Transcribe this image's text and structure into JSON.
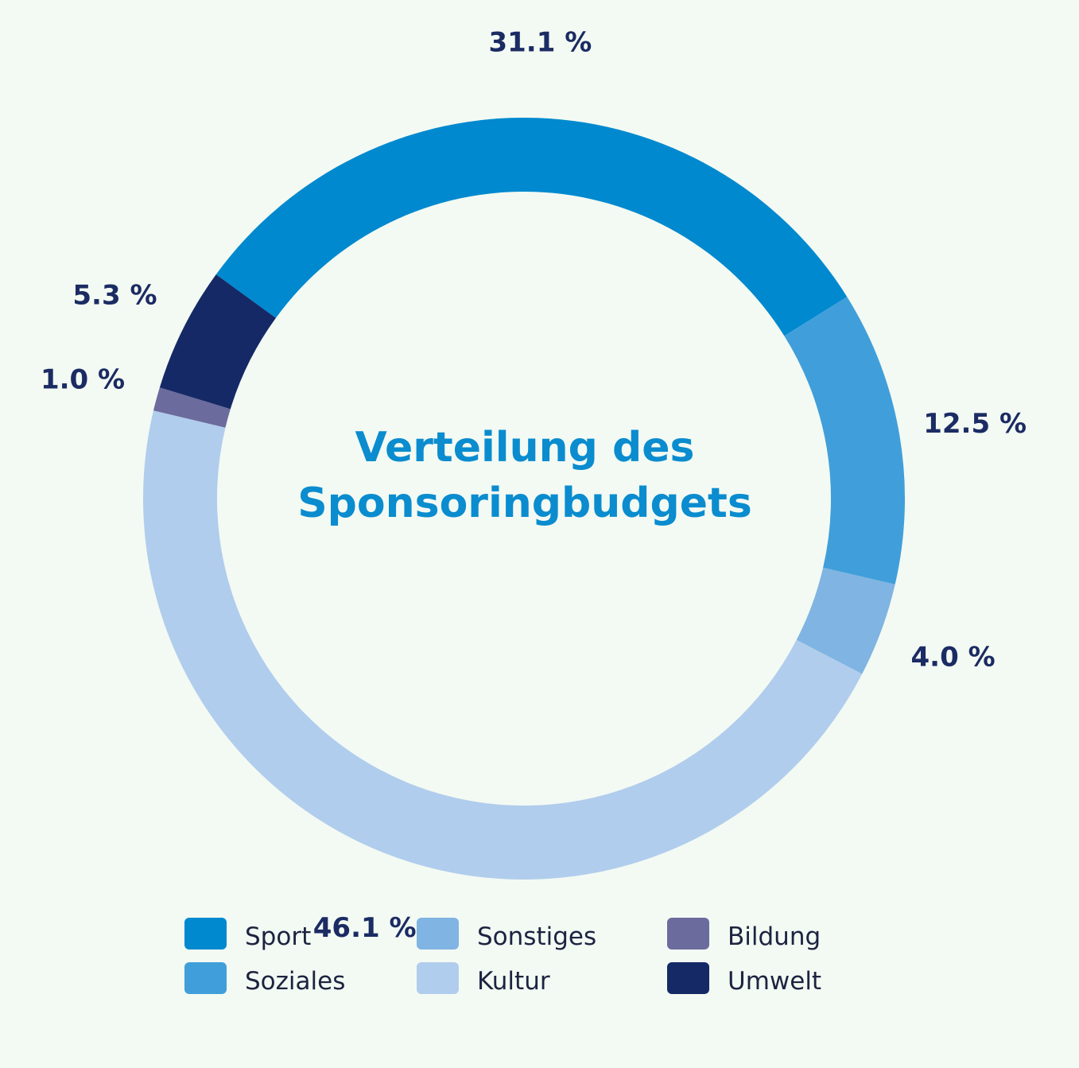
{
  "chart_data": {
    "type": "pie",
    "title": "Verteilung des Sponsoringbudgets",
    "title_lines": [
      "Verteilung des",
      "Sponsoringbudgets"
    ],
    "donut": true,
    "legend_position": "bottom",
    "slices": [
      {
        "name": "Sport",
        "value": 31.1,
        "label": "31.1 %",
        "color": "#0089cf"
      },
      {
        "name": "Soziales",
        "value": 12.5,
        "label": "12.5 %",
        "color": "#409fda"
      },
      {
        "name": "Sonstiges",
        "value": 4.0,
        "label": "4.0 %",
        "color": "#80b4e2"
      },
      {
        "name": "Kultur",
        "value": 46.1,
        "label": "46.1 %",
        "color": "#b1cded"
      },
      {
        "name": "Bildung",
        "value": 1.0,
        "label": "1.0 %",
        "color": "#6b6b9d"
      },
      {
        "name": "Umwelt",
        "value": 5.3,
        "label": "5.3 %",
        "color": "#152966"
      }
    ],
    "legend": [
      {
        "name": "Sport",
        "color": "#0089cf"
      },
      {
        "name": "Soziales",
        "color": "#409fda"
      },
      {
        "name": "Sonstiges",
        "color": "#80b4e2"
      },
      {
        "name": "Kultur",
        "color": "#b1cded"
      },
      {
        "name": "Bildung",
        "color": "#6b6b9d"
      },
      {
        "name": "Umwelt",
        "color": "#152966"
      }
    ]
  }
}
